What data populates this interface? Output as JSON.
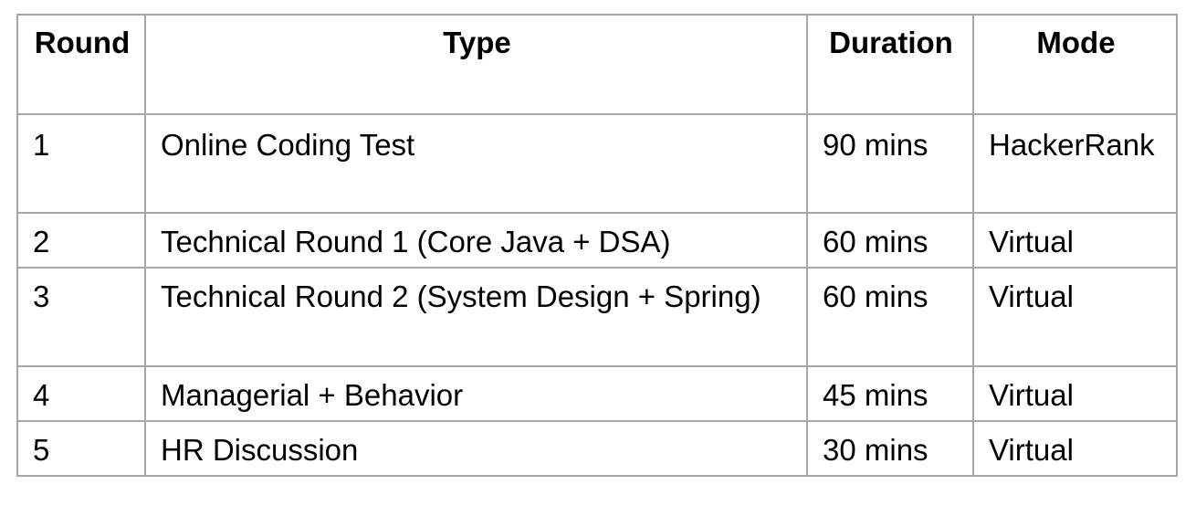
{
  "table": {
    "headers": [
      "Round",
      "Type",
      "Duration",
      "Mode"
    ],
    "rows": [
      {
        "round": "1",
        "type": "Online Coding Test",
        "duration": "90 mins",
        "mode": "HackerRank"
      },
      {
        "round": "2",
        "type": "Technical Round 1 (Core Java + DSA)",
        "duration": "60 mins",
        "mode": "Virtual"
      },
      {
        "round": "3",
        "type": "Technical Round 2 (System Design + Spring)",
        "duration": "60 mins",
        "mode": "Virtual"
      },
      {
        "round": "4",
        "type": "Managerial + Behavior",
        "duration": "45 mins",
        "mode": "Virtual"
      },
      {
        "round": "5",
        "type": "HR Discussion",
        "duration": "30 mins",
        "mode": "Virtual"
      }
    ]
  }
}
